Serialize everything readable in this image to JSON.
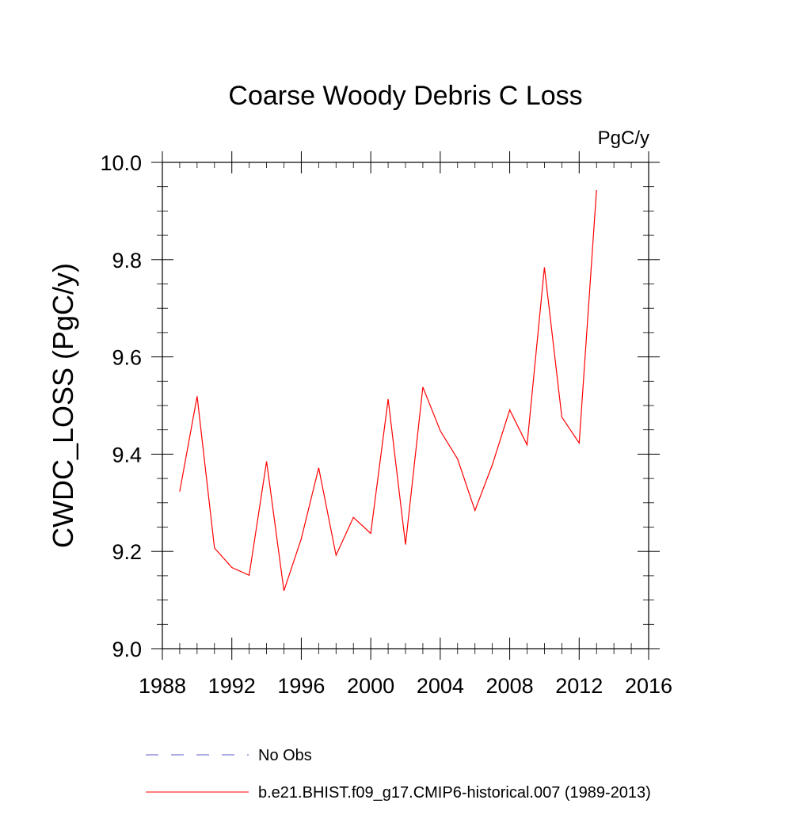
{
  "chart_data": {
    "type": "line",
    "title": "Coarse Woody Debris C Loss",
    "units_label": "PgC/y",
    "ylabel": "CWDC_LOSS  (PgC/y)",
    "xlabel": "",
    "xlim": [
      1988,
      2016
    ],
    "ylim": [
      9.0,
      10.0
    ],
    "x_ticks": [
      1988,
      1992,
      1996,
      2000,
      2004,
      2008,
      2012,
      2016
    ],
    "x_tick_labels": [
      "1988",
      "1992",
      "1996",
      "2000",
      "2004",
      "2008",
      "2012",
      "2016"
    ],
    "y_ticks": [
      9.0,
      9.2,
      9.4,
      9.6,
      9.8,
      10.0
    ],
    "y_tick_labels": [
      "9.0",
      "9.2",
      "9.4",
      "9.6",
      "9.8",
      "10.0"
    ],
    "grid": false,
    "legend_position": "bottom",
    "legend": [
      {
        "label": "No Obs",
        "color": "#5a5ad2",
        "style": "dashed"
      },
      {
        "label": "b.e21.BHIST.f09_g17.CMIP6-historical.007 (1989-2013)",
        "color": "#ff0000",
        "style": "solid"
      }
    ],
    "series": [
      {
        "name": "b.e21.BHIST.f09_g17.CMIP6-historical.007 (1989-2013)",
        "color": "#ff0000",
        "x": [
          1989,
          1990,
          1991,
          1992,
          1993,
          1994,
          1995,
          1996,
          1997,
          1998,
          1999,
          2000,
          2001,
          2002,
          2003,
          2004,
          2005,
          2006,
          2007,
          2008,
          2009,
          2010,
          2011,
          2012,
          2013
        ],
        "y": [
          9.323,
          9.519,
          9.207,
          9.167,
          9.151,
          9.385,
          9.119,
          9.226,
          9.372,
          9.192,
          9.27,
          9.237,
          9.513,
          9.214,
          9.538,
          9.448,
          9.39,
          9.284,
          9.378,
          9.491,
          9.419,
          9.784,
          9.476,
          9.423,
          9.943
        ]
      }
    ]
  }
}
